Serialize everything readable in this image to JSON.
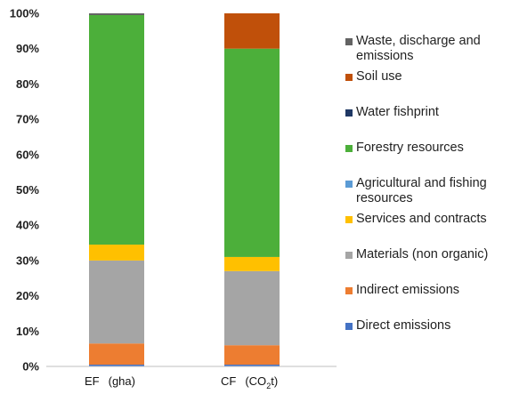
{
  "chart_data": {
    "type": "bar",
    "stacked": true,
    "percent": true,
    "title": "",
    "xlabel": "",
    "ylabel": "",
    "ylim": [
      0,
      100
    ],
    "yticks": [
      "0%",
      "10%",
      "20%",
      "30%",
      "40%",
      "50%",
      "60%",
      "70%",
      "80%",
      "90%",
      "100%"
    ],
    "legend_position": "right",
    "categories": [
      {
        "name": "EF",
        "unit": "(gha)"
      },
      {
        "name": "CF",
        "unit_main": "(CO",
        "unit_sub": "2",
        "unit_end": "t)"
      }
    ],
    "series": [
      {
        "name": "Direct emissions",
        "color": "#4472c4",
        "values": [
          0.5,
          0.5
        ]
      },
      {
        "name": "Indirect emissions",
        "color": "#ed7d31",
        "values": [
          6.0,
          5.5
        ]
      },
      {
        "name": "Materials (non organic)",
        "color": "#a5a5a5",
        "values": [
          23.5,
          21.0
        ]
      },
      {
        "name": "Services and contracts",
        "color": "#ffc000",
        "values": [
          4.5,
          4.0
        ]
      },
      {
        "name": "Agricultural and fishing resources",
        "color": "#5b9bd5",
        "values": [
          0.0,
          0.0
        ]
      },
      {
        "name": "Forestry resources",
        "color": "#4caf3a",
        "values": [
          65.0,
          59.0
        ]
      },
      {
        "name": "Water fishprint",
        "color": "#1f3864",
        "values": [
          0.0,
          0.0
        ]
      },
      {
        "name": "Soil use",
        "color": "#c0500a",
        "values": [
          0.0,
          10.0
        ]
      },
      {
        "name": "Waste, discharge and emissions",
        "color": "#636363",
        "values": [
          0.5,
          0.0
        ]
      }
    ]
  }
}
